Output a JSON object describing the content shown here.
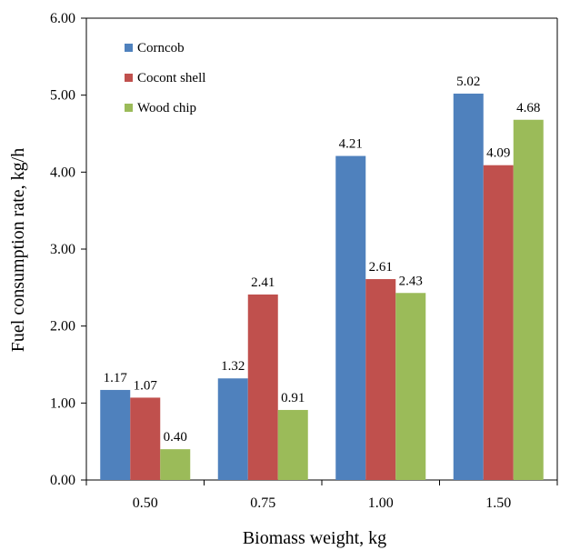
{
  "chart_data": {
    "type": "bar",
    "title": "",
    "xlabel": "Biomass weight, kg",
    "ylabel": "Fuel consumption rate, kg/h",
    "categories": [
      "0.50",
      "0.75",
      "1.00",
      "1.50"
    ],
    "series": [
      {
        "name": "Corncob",
        "color": "#4f81bd",
        "values": [
          1.17,
          1.32,
          4.21,
          5.02
        ],
        "labels": [
          "1.17",
          "1.32",
          "4.21",
          "5.02"
        ]
      },
      {
        "name": "Cocont shell",
        "color": "#c0504d",
        "values": [
          1.07,
          2.41,
          2.61,
          4.09
        ],
        "labels": [
          "1.07",
          "2.41",
          "2.61",
          "4.09"
        ]
      },
      {
        "name": "Wood chip",
        "color": "#9bbb59",
        "values": [
          0.4,
          0.91,
          2.43,
          4.68
        ],
        "labels": [
          "0.40",
          "0.91",
          "2.43",
          "4.68"
        ]
      }
    ],
    "ylim": [
      0,
      6
    ],
    "yticks": [
      "0.00",
      "1.00",
      "2.00",
      "3.00",
      "4.00",
      "5.00",
      "6.00"
    ],
    "grid": false,
    "legend_position": "top-left"
  }
}
